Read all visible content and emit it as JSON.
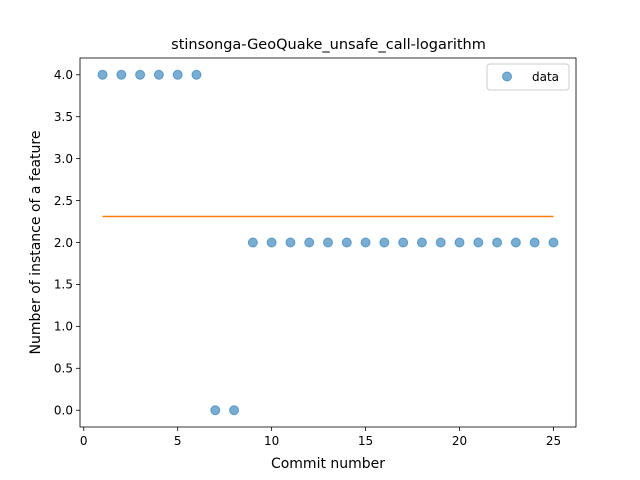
{
  "chart_data": {
    "type": "scatter",
    "title": "stinsonga-GeoQuake_unsafe_call-logarithm",
    "xlabel": "Commit number",
    "ylabel": "Number of instance of a feature",
    "xlim": [
      -0.2,
      26.2
    ],
    "ylim": [
      -0.2,
      4.2
    ],
    "xticks": [
      0,
      5,
      10,
      15,
      20,
      25
    ],
    "xtick_labels": [
      "0",
      "5",
      "10",
      "15",
      "20",
      "25"
    ],
    "yticks": [
      0.0,
      0.5,
      1.0,
      1.5,
      2.0,
      2.5,
      3.0,
      3.5,
      4.0
    ],
    "ytick_labels": [
      "0.0",
      "0.5",
      "1.0",
      "1.5",
      "2.0",
      "2.5",
      "3.0",
      "3.5",
      "4.0"
    ],
    "grid": false,
    "legend_position": "top-right",
    "series": [
      {
        "name": "data",
        "kind": "scatter",
        "color": "#1f77b4",
        "x": [
          1,
          2,
          3,
          4,
          5,
          6,
          7,
          8,
          9,
          10,
          11,
          12,
          13,
          14,
          15,
          16,
          17,
          18,
          19,
          20,
          21,
          22,
          23,
          24,
          25
        ],
        "y": [
          4,
          4,
          4,
          4,
          4,
          4,
          0,
          0,
          2,
          2,
          2,
          2,
          2,
          2,
          2,
          2,
          2,
          2,
          2,
          2,
          2,
          2,
          2,
          2,
          2
        ]
      },
      {
        "kind": "line",
        "color": "#ff7f0e",
        "x": [
          1,
          25
        ],
        "y": [
          2.31,
          2.31
        ]
      }
    ]
  }
}
